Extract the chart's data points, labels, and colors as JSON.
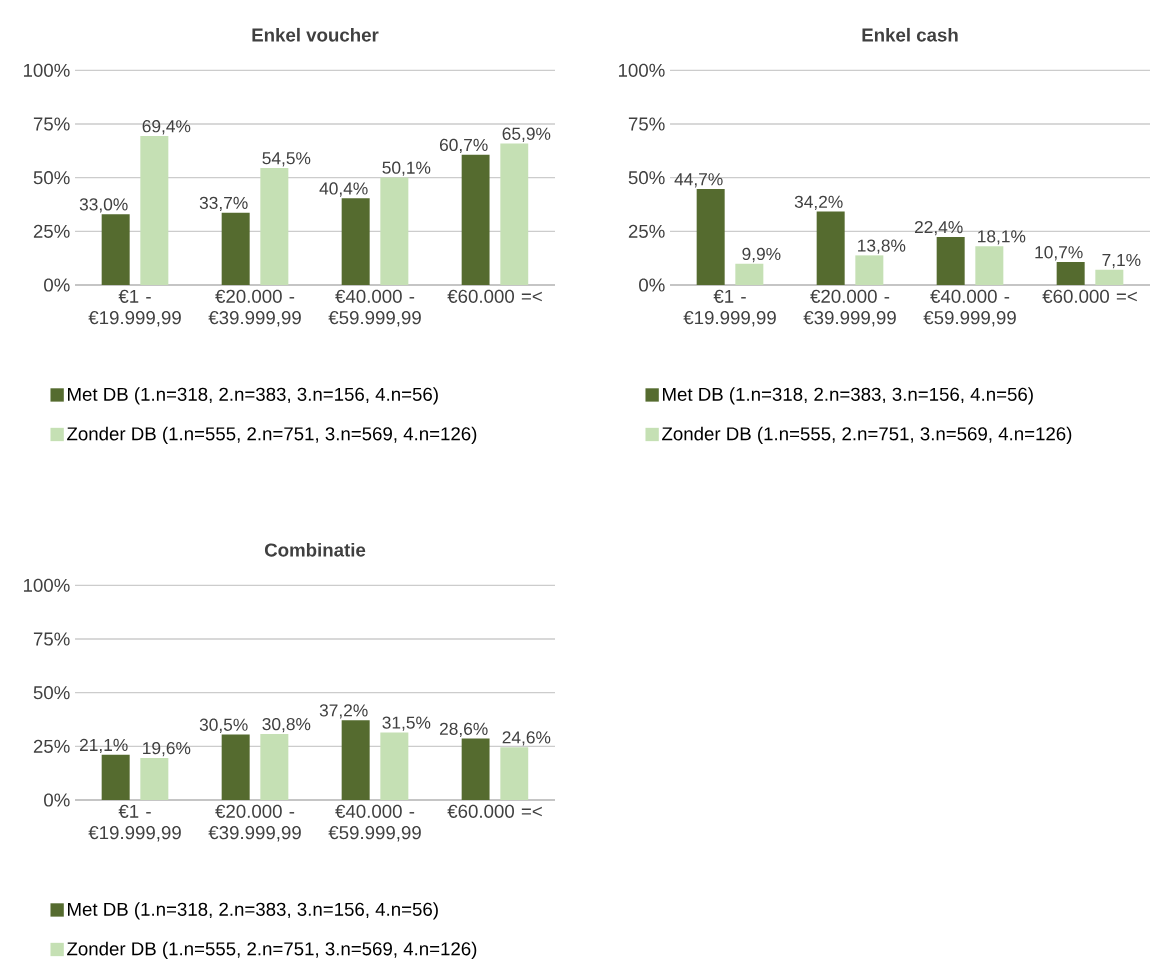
{
  "chart_data": [
    {
      "type": "bar",
      "title": "Enkel voucher",
      "categories": [
        "€1 - €19.999,99",
        "€20.000 - €39.999,99",
        "€40.000 - €59.999,99",
        "€60.000 =<"
      ],
      "series": [
        {
          "name": "Met DB (1.n=318, 2.n=383, 3.n=156, 4.n=56)",
          "color": "#556b2f",
          "values": [
            33.0,
            33.7,
            40.4,
            60.7
          ],
          "value_labels": [
            "33,0%",
            "33,7%",
            "40,4%",
            "60,7%"
          ]
        },
        {
          "name": "Zonder DB (1.n=555, 2.n=751, 3.n=569, 4.n=126)",
          "color": "#c5e0b4",
          "values": [
            69.4,
            54.5,
            50.1,
            65.9
          ],
          "value_labels": [
            "69,4%",
            "54,5%",
            "50,1%",
            "65,9%"
          ]
        }
      ],
      "ylim": [
        0,
        100
      ],
      "yticks": [
        {
          "value": 0,
          "label": "0%"
        },
        {
          "value": 25,
          "label": "25%"
        },
        {
          "value": 50,
          "label": "50%"
        },
        {
          "value": 75,
          "label": "75%"
        },
        {
          "value": 100,
          "label": "100%"
        }
      ],
      "grid": "y",
      "legend": "bottom"
    },
    {
      "type": "bar",
      "title": "Enkel cash",
      "categories": [
        "€1 - €19.999,99",
        "€20.000 - €39.999,99",
        "€40.000 - €59.999,99",
        "€60.000 =<"
      ],
      "series": [
        {
          "name": "Met DB (1.n=318, 2.n=383, 3.n=156, 4.n=56)",
          "color": "#556b2f",
          "values": [
            44.7,
            34.2,
            22.4,
            10.7
          ],
          "value_labels": [
            "44,7%",
            "34,2%",
            "22,4%",
            "10,7%"
          ]
        },
        {
          "name": "Zonder DB (1.n=555, 2.n=751, 3.n=569, 4.n=126)",
          "color": "#c5e0b4",
          "values": [
            9.9,
            13.8,
            18.1,
            7.1
          ],
          "value_labels": [
            "9,9%",
            "13,8%",
            "18,1%",
            "7,1%"
          ]
        }
      ],
      "ylim": [
        0,
        100
      ],
      "yticks": [
        {
          "value": 0,
          "label": "0%"
        },
        {
          "value": 25,
          "label": "25%"
        },
        {
          "value": 50,
          "label": "50%"
        },
        {
          "value": 75,
          "label": "75%"
        },
        {
          "value": 100,
          "label": "100%"
        }
      ],
      "grid": "y",
      "legend": "bottom"
    },
    {
      "type": "bar",
      "title": "Combinatie",
      "categories": [
        "€1 - €19.999,99",
        "€20.000 - €39.999,99",
        "€40.000 - €59.999,99",
        "€60.000 =<"
      ],
      "series": [
        {
          "name": "Met DB (1.n=318, 2.n=383, 3.n=156, 4.n=56)",
          "color": "#556b2f",
          "values": [
            21.1,
            30.5,
            37.2,
            28.6
          ],
          "value_labels": [
            "21,1%",
            "30,5%",
            "37,2%",
            "28,6%"
          ]
        },
        {
          "name": "Zonder DB (1.n=555, 2.n=751, 3.n=569, 4.n=126)",
          "color": "#c5e0b4",
          "values": [
            19.6,
            30.8,
            31.5,
            24.6
          ],
          "value_labels": [
            "19,6%",
            "30,8%",
            "31,5%",
            "24,6%"
          ]
        }
      ],
      "ylim": [
        0,
        100
      ],
      "yticks": [
        {
          "value": 0,
          "label": "0%"
        },
        {
          "value": 25,
          "label": "25%"
        },
        {
          "value": 50,
          "label": "50%"
        },
        {
          "value": 75,
          "label": "75%"
        },
        {
          "value": 100,
          "label": "100%"
        }
      ],
      "grid": "y",
      "legend": "bottom"
    }
  ]
}
